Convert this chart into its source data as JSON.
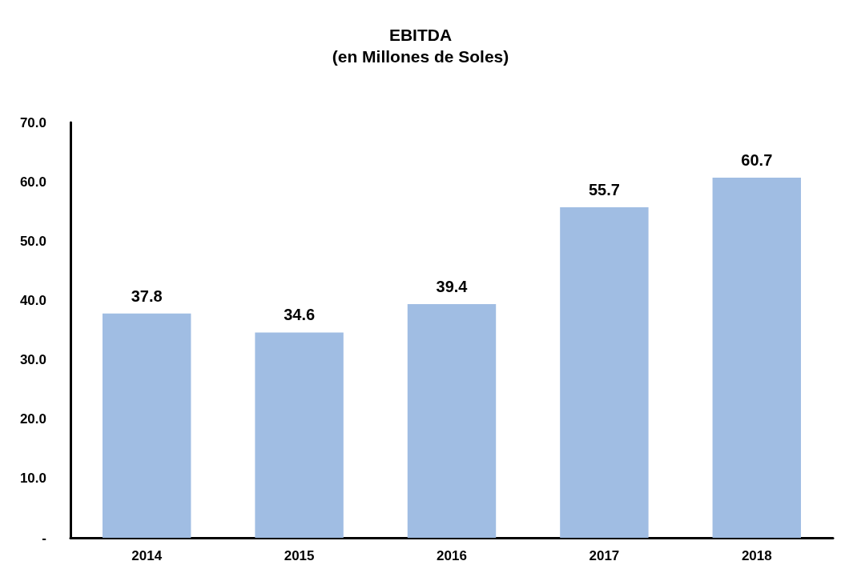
{
  "chart_data": {
    "type": "bar",
    "title": "EBITDA",
    "subtitle": "(en Millones de Soles)",
    "categories": [
      "2014",
      "2015",
      "2016",
      "2017",
      "2018"
    ],
    "values": [
      37.8,
      34.6,
      39.4,
      55.7,
      60.7
    ],
    "color": "#a0bde3",
    "ylim": [
      0,
      70
    ],
    "yticks": [
      {
        "value": 0,
        "label": "-"
      },
      {
        "value": 10,
        "label": "10.0"
      },
      {
        "value": 20,
        "label": "20.0"
      },
      {
        "value": 30,
        "label": "30.0"
      },
      {
        "value": 40,
        "label": "40.0"
      },
      {
        "value": 50,
        "label": "50.0"
      },
      {
        "value": 60,
        "label": "60.0"
      },
      {
        "value": 70,
        "label": "70.0"
      }
    ],
    "data_labels": true,
    "grid": false
  }
}
